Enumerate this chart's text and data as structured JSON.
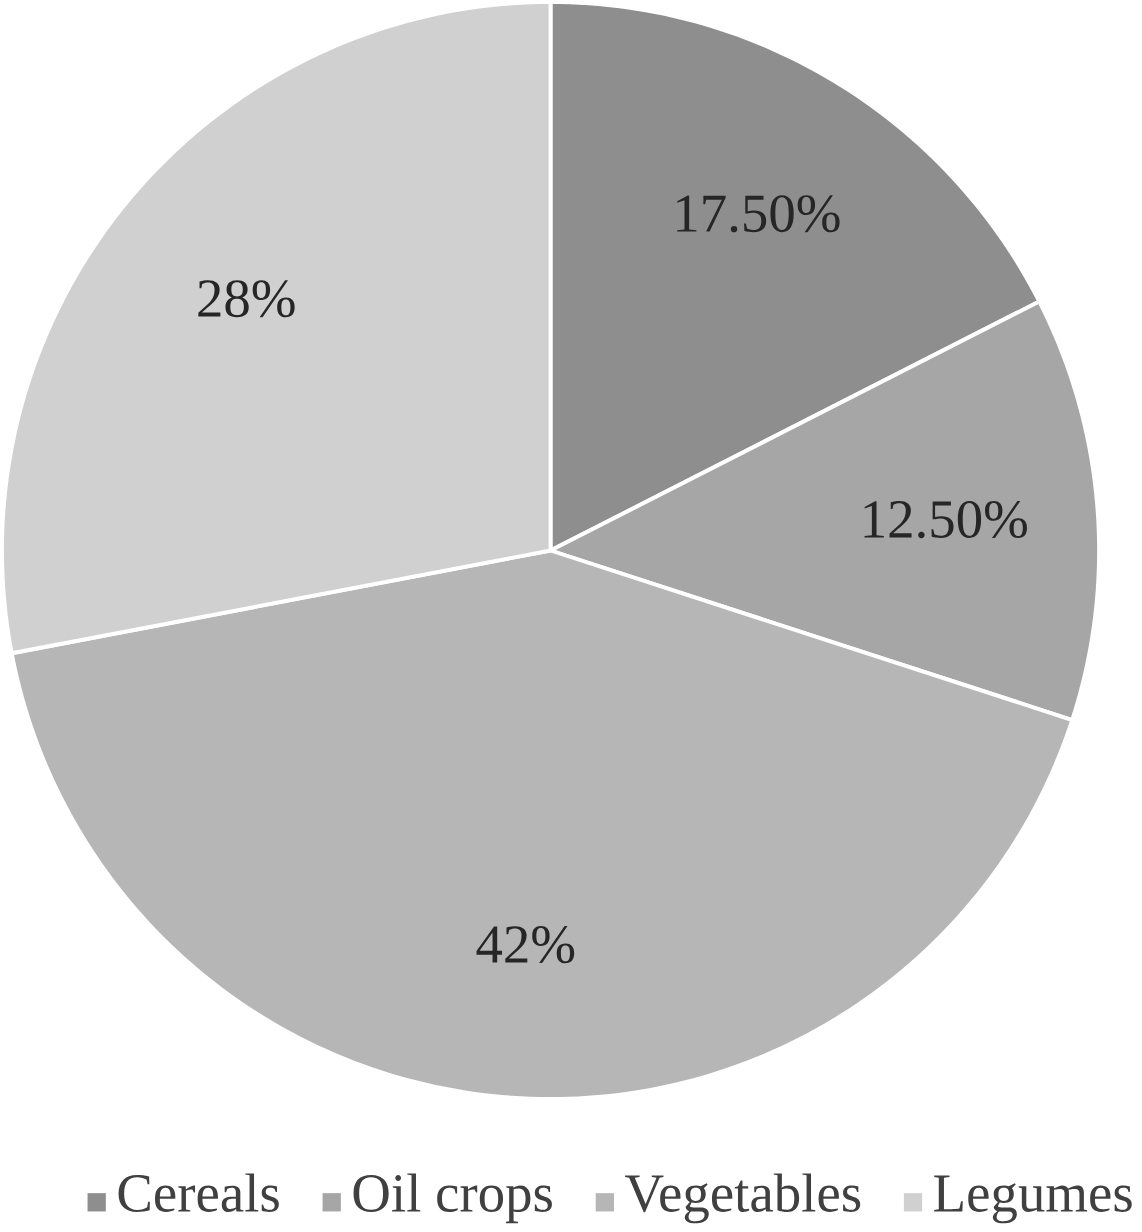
{
  "chart_data": {
    "type": "pie",
    "categories": [
      "Cereals",
      "Oil crops",
      "Vegetables",
      "Legumes"
    ],
    "values": [
      17.5,
      12.5,
      42,
      28
    ],
    "value_labels": [
      "17.50%",
      "12.50%",
      "42%",
      "28%"
    ],
    "colors": [
      "#8e8e8e",
      "#a6a6a6",
      "#b6b6b6",
      "#d0d0d0"
    ],
    "legend": "bottom"
  }
}
